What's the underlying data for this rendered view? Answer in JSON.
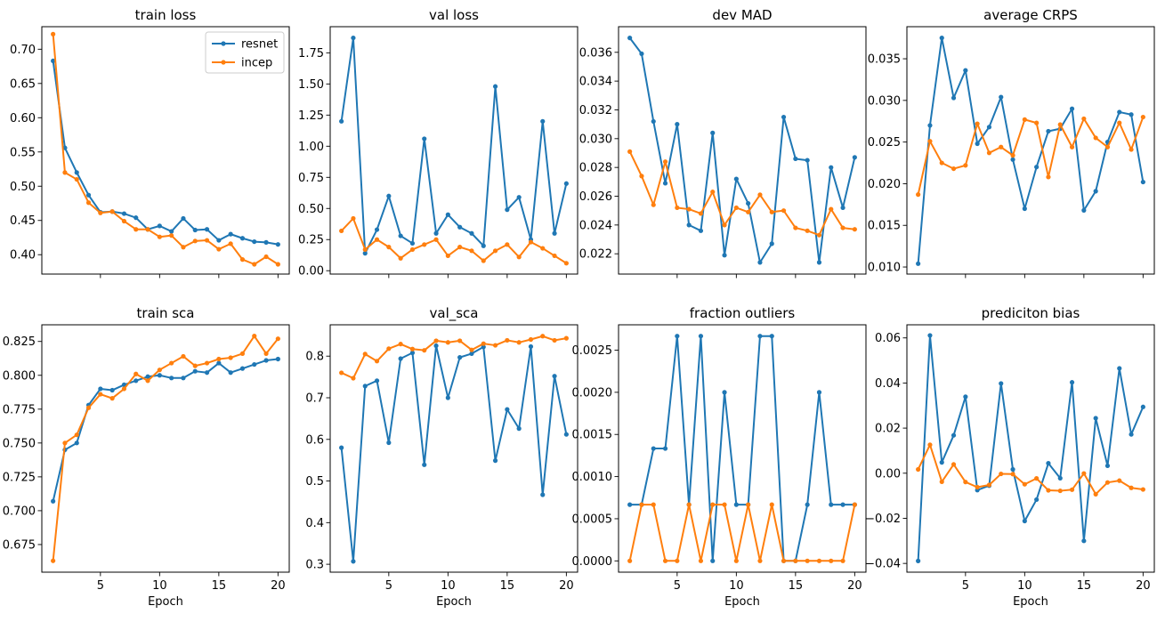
{
  "colors": {
    "resnet": "#1f77b4",
    "incep": "#ff7f0e"
  },
  "chart_data": [
    {
      "type": "line",
      "title": "train loss",
      "xlabel": "",
      "ylabel": "",
      "xlim": [
        0.05,
        20.95
      ],
      "ylim": [
        0.3717,
        0.7329
      ],
      "yticks": [
        0.4,
        0.45,
        0.5,
        0.55,
        0.6,
        0.65,
        0.7
      ],
      "ytick_labels": [
        "0.40",
        "0.45",
        "0.50",
        "0.55",
        "0.60",
        "0.65",
        "0.70"
      ],
      "xticks": [
        5,
        10,
        15,
        20
      ],
      "show_xtick_labels": false,
      "legend": {
        "placement": "upper right",
        "entries": [
          "resnet",
          "incep"
        ]
      },
      "x": [
        1,
        2,
        3,
        4,
        5,
        6,
        7,
        8,
        9,
        10,
        11,
        12,
        13,
        14,
        15,
        16,
        17,
        18,
        19,
        20
      ],
      "series": [
        {
          "name": "resnet",
          "values": [
            0.683,
            0.556,
            0.52,
            0.487,
            0.462,
            0.463,
            0.46,
            0.454,
            0.437,
            0.442,
            0.434,
            0.453,
            0.436,
            0.437,
            0.421,
            0.43,
            0.424,
            0.419,
            0.418,
            0.415
          ]
        },
        {
          "name": "incep",
          "values": [
            0.722,
            0.52,
            0.51,
            0.476,
            0.461,
            0.463,
            0.449,
            0.437,
            0.437,
            0.426,
            0.428,
            0.411,
            0.42,
            0.421,
            0.408,
            0.416,
            0.393,
            0.386,
            0.397,
            0.386
          ]
        }
      ]
    },
    {
      "type": "line",
      "title": "val loss",
      "xlabel": "",
      "ylabel": "",
      "xlim": [
        0.05,
        20.95
      ],
      "ylim": [
        -0.027,
        1.96
      ],
      "yticks": [
        0.0,
        0.25,
        0.5,
        0.75,
        1.0,
        1.25,
        1.5,
        1.75
      ],
      "ytick_labels": [
        "0.00",
        "0.25",
        "0.50",
        "0.75",
        "1.00",
        "1.25",
        "1.50",
        "1.75"
      ],
      "xticks": [
        5,
        10,
        15,
        20
      ],
      "show_xtick_labels": false,
      "x": [
        1,
        2,
        3,
        4,
        5,
        6,
        7,
        8,
        9,
        10,
        11,
        12,
        13,
        14,
        15,
        16,
        17,
        18,
        19,
        20
      ],
      "series": [
        {
          "name": "resnet",
          "values": [
            1.2,
            1.87,
            0.14,
            0.33,
            0.6,
            0.28,
            0.22,
            1.06,
            0.3,
            0.45,
            0.35,
            0.3,
            0.2,
            1.48,
            0.49,
            0.59,
            0.25,
            1.2,
            0.3,
            0.7
          ]
        },
        {
          "name": "incep",
          "values": [
            0.32,
            0.42,
            0.17,
            0.25,
            0.19,
            0.1,
            0.17,
            0.21,
            0.25,
            0.12,
            0.19,
            0.16,
            0.08,
            0.16,
            0.21,
            0.11,
            0.23,
            0.18,
            0.12,
            0.06
          ]
        }
      ]
    },
    {
      "type": "line",
      "title": "dev MAD",
      "xlabel": "",
      "ylabel": "",
      "xlim": [
        0.05,
        20.95
      ],
      "ylim": [
        0.02059,
        0.03778
      ],
      "yticks": [
        0.022,
        0.024,
        0.026,
        0.028,
        0.03,
        0.032,
        0.034,
        0.036
      ],
      "ytick_labels": [
        "0.022",
        "0.024",
        "0.026",
        "0.028",
        "0.030",
        "0.032",
        "0.034",
        "0.036"
      ],
      "xticks": [
        5,
        10,
        15,
        20
      ],
      "show_xtick_labels": false,
      "x": [
        1,
        2,
        3,
        4,
        5,
        6,
        7,
        8,
        9,
        10,
        11,
        12,
        13,
        14,
        15,
        16,
        17,
        18,
        19,
        20
      ],
      "series": [
        {
          "name": "resnet",
          "values": [
            0.037,
            0.0359,
            0.0312,
            0.0269,
            0.031,
            0.024,
            0.0236,
            0.0304,
            0.0219,
            0.0272,
            0.0255,
            0.0214,
            0.0227,
            0.0315,
            0.0286,
            0.0285,
            0.0214,
            0.028,
            0.0252,
            0.0287
          ]
        },
        {
          "name": "incep",
          "values": [
            0.0291,
            0.0274,
            0.0254,
            0.0284,
            0.0252,
            0.0251,
            0.0248,
            0.0263,
            0.024,
            0.0252,
            0.0249,
            0.0261,
            0.0249,
            0.025,
            0.0238,
            0.0236,
            0.0233,
            0.0251,
            0.0238,
            0.0237
          ]
        }
      ]
    },
    {
      "type": "line",
      "title": "average CRPS",
      "xlabel": "",
      "ylabel": "",
      "xlim": [
        0.05,
        20.95
      ],
      "ylim": [
        0.00915,
        0.03885
      ],
      "yticks": [
        0.01,
        0.015,
        0.02,
        0.025,
        0.03,
        0.035
      ],
      "ytick_labels": [
        "0.010",
        "0.015",
        "0.020",
        "0.025",
        "0.030",
        "0.035"
      ],
      "xticks": [
        5,
        10,
        15,
        20
      ],
      "show_xtick_labels": false,
      "x": [
        1,
        2,
        3,
        4,
        5,
        6,
        7,
        8,
        9,
        10,
        11,
        12,
        13,
        14,
        15,
        16,
        17,
        18,
        19,
        20
      ],
      "series": [
        {
          "name": "resnet",
          "values": [
            0.0104,
            0.027,
            0.0375,
            0.0303,
            0.0336,
            0.0248,
            0.0268,
            0.0304,
            0.0229,
            0.017,
            0.022,
            0.0263,
            0.0266,
            0.029,
            0.0168,
            0.0191,
            0.025,
            0.0286,
            0.0283,
            0.0202
          ]
        },
        {
          "name": "incep",
          "values": [
            0.0187,
            0.0251,
            0.0225,
            0.0218,
            0.0222,
            0.0272,
            0.0237,
            0.0244,
            0.0234,
            0.0277,
            0.0273,
            0.0208,
            0.0271,
            0.0244,
            0.0278,
            0.0255,
            0.0244,
            0.0273,
            0.0241,
            0.028
          ]
        }
      ]
    },
    {
      "type": "line",
      "title": "train sca",
      "xlabel": "Epoch",
      "ylabel": "",
      "xlim": [
        0.05,
        20.95
      ],
      "ylim": [
        0.6546,
        0.8373
      ],
      "yticks": [
        0.675,
        0.7,
        0.725,
        0.75,
        0.775,
        0.8,
        0.825
      ],
      "ytick_labels": [
        "0.675",
        "0.700",
        "0.725",
        "0.750",
        "0.775",
        "0.800",
        "0.825"
      ],
      "xticks": [
        5,
        10,
        15,
        20
      ],
      "xtick_labels": [
        "5",
        "10",
        "15",
        "20"
      ],
      "show_xtick_labels": true,
      "x": [
        1,
        2,
        3,
        4,
        5,
        6,
        7,
        8,
        9,
        10,
        11,
        12,
        13,
        14,
        15,
        16,
        17,
        18,
        19,
        20
      ],
      "series": [
        {
          "name": "resnet",
          "values": [
            0.707,
            0.745,
            0.75,
            0.778,
            0.79,
            0.789,
            0.793,
            0.796,
            0.799,
            0.8,
            0.798,
            0.798,
            0.803,
            0.802,
            0.809,
            0.802,
            0.805,
            0.808,
            0.811,
            0.812
          ]
        },
        {
          "name": "incep",
          "values": [
            0.663,
            0.75,
            0.756,
            0.776,
            0.786,
            0.783,
            0.79,
            0.801,
            0.796,
            0.804,
            0.809,
            0.814,
            0.807,
            0.809,
            0.812,
            0.813,
            0.816,
            0.829,
            0.816,
            0.827
          ]
        }
      ]
    },
    {
      "type": "line",
      "title": "val_sca",
      "xlabel": "Epoch",
      "ylabel": "",
      "xlim": [
        0.05,
        20.95
      ],
      "ylim": [
        0.281,
        0.8753
      ],
      "yticks": [
        0.3,
        0.4,
        0.5,
        0.6,
        0.7,
        0.8
      ],
      "ytick_labels": [
        "0.3",
        "0.4",
        "0.5",
        "0.6",
        "0.7",
        "0.8"
      ],
      "xticks": [
        5,
        10,
        15,
        20
      ],
      "xtick_labels": [
        "5",
        "10",
        "15",
        "20"
      ],
      "show_xtick_labels": true,
      "x": [
        1,
        2,
        3,
        4,
        5,
        6,
        7,
        8,
        9,
        10,
        11,
        12,
        13,
        14,
        15,
        16,
        17,
        18,
        19,
        20
      ],
      "series": [
        {
          "name": "resnet",
          "values": [
            0.58,
            0.307,
            0.728,
            0.741,
            0.592,
            0.794,
            0.808,
            0.539,
            0.825,
            0.7,
            0.797,
            0.806,
            0.822,
            0.549,
            0.672,
            0.626,
            0.823,
            0.467,
            0.752,
            0.612
          ]
        },
        {
          "name": "incep",
          "values": [
            0.76,
            0.747,
            0.805,
            0.788,
            0.818,
            0.829,
            0.817,
            0.814,
            0.837,
            0.833,
            0.837,
            0.815,
            0.83,
            0.826,
            0.838,
            0.833,
            0.84,
            0.848,
            0.838,
            0.843
          ]
        }
      ]
    },
    {
      "type": "line",
      "title": "fraction outliers",
      "xlabel": "Epoch",
      "ylabel": "",
      "xlim": [
        0.05,
        20.95
      ],
      "ylim": [
        -0.000134,
        0.002801
      ],
      "yticks": [
        0.0,
        0.0005,
        0.001,
        0.0015,
        0.002,
        0.0025
      ],
      "ytick_labels": [
        "0.0000",
        "0.0005",
        "0.0010",
        "0.0015",
        "0.0020",
        "0.0025"
      ],
      "xticks": [
        5,
        10,
        15,
        20
      ],
      "xtick_labels": [
        "5",
        "10",
        "15",
        "20"
      ],
      "show_xtick_labels": true,
      "x": [
        1,
        2,
        3,
        4,
        5,
        6,
        7,
        8,
        9,
        10,
        11,
        12,
        13,
        14,
        15,
        16,
        17,
        18,
        19,
        20
      ],
      "series": [
        {
          "name": "resnet",
          "values": [
            0.000667,
            0.000667,
            0.001333,
            0.001333,
            0.002667,
            0.000667,
            0.002667,
            0.0,
            0.002,
            0.000667,
            0.000667,
            0.002667,
            0.002667,
            0.0,
            0.0,
            0.000667,
            0.002,
            0.000667,
            0.000667,
            0.000667
          ]
        },
        {
          "name": "incep",
          "values": [
            0.0,
            0.000667,
            0.000667,
            0.0,
            0.0,
            0.000667,
            0.0,
            0.000667,
            0.000667,
            0.0,
            0.000667,
            0.0,
            0.000667,
            0.0,
            0.0,
            0.0,
            0.0,
            0.0,
            0.0,
            0.000667
          ]
        }
      ]
    },
    {
      "type": "line",
      "title": "prediciton bias",
      "xlabel": "Epoch",
      "ylabel": "",
      "xlim": [
        0.05,
        20.95
      ],
      "ylim": [
        -0.04388,
        0.06581
      ],
      "yticks": [
        -0.04,
        -0.02,
        0.0,
        0.02,
        0.04,
        0.06
      ],
      "ytick_labels": [
        "−0.04",
        "−0.02",
        "0.00",
        "0.02",
        "0.04",
        "0.06"
      ],
      "xticks": [
        5,
        10,
        15,
        20
      ],
      "xtick_labels": [
        "5",
        "10",
        "15",
        "20"
      ],
      "show_xtick_labels": true,
      "x": [
        1,
        2,
        3,
        4,
        5,
        6,
        7,
        8,
        9,
        10,
        11,
        12,
        13,
        14,
        15,
        16,
        17,
        18,
        19,
        20
      ],
      "series": [
        {
          "name": "resnet",
          "values": [
            -0.0389,
            0.0611,
            0.0048,
            0.0168,
            0.0339,
            -0.0075,
            -0.0055,
            0.0398,
            0.0017,
            -0.0212,
            -0.0117,
            0.0044,
            -0.0022,
            0.0403,
            -0.03,
            0.0244,
            0.0033,
            0.0465,
            0.0172,
            0.0294
          ]
        },
        {
          "name": "incep",
          "values": [
            0.0017,
            0.0126,
            -0.0038,
            0.0039,
            -0.0039,
            -0.0062,
            -0.0052,
            -0.0003,
            -0.0004,
            -0.0049,
            -0.0023,
            -0.0076,
            -0.0078,
            -0.0073,
            -0.0001,
            -0.0093,
            -0.0041,
            -0.0033,
            -0.0065,
            -0.0072
          ]
        }
      ]
    }
  ]
}
